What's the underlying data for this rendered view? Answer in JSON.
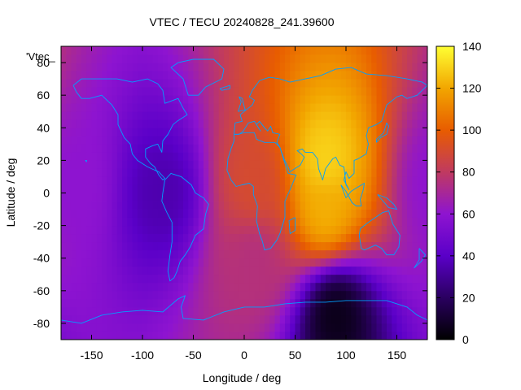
{
  "chart_data": {
    "type": "heatmap",
    "title": "VTEC / TECU 20240828_241.39600",
    "series_key_label": "'Vtec_",
    "xlabel": "Longitude / deg",
    "ylabel": "Latitude / deg",
    "xlim": [
      -180,
      180
    ],
    "ylim": [
      -90,
      90
    ],
    "x_ticks": [
      -150,
      -100,
      -50,
      0,
      50,
      100,
      150
    ],
    "y_ticks": [
      -80,
      -60,
      -40,
      -20,
      0,
      20,
      40,
      60,
      80
    ],
    "colorbar": {
      "min": 0,
      "max": 140,
      "ticks": [
        0,
        20,
        40,
        60,
        80,
        100,
        120,
        140
      ],
      "palette": [
        "#000000",
        "#2a0060",
        "#5a00c8",
        "#8e14d0",
        "#c03a60",
        "#e85c00",
        "#f2a600",
        "#ffff33"
      ]
    },
    "grid_resolution_deg": 5,
    "features": [
      {
        "region": "Indian Ocean / southern Asia crest",
        "lon": 80,
        "lat": 20,
        "vtec": 130
      },
      {
        "region": "Southern Indian Ocean crest",
        "lon": 80,
        "lat": -10,
        "vtec": 122
      },
      {
        "region": "Africa / Atlantic equatorial band",
        "lon": 10,
        "lat": 5,
        "vtec": 90
      },
      {
        "region": "South Atlantic",
        "lon": 10,
        "lat": -40,
        "vtec": 75
      },
      {
        "region": "Central Pacific",
        "lon": -170,
        "lat": 5,
        "vtec": 60
      },
      {
        "region": "Americas",
        "lon": -80,
        "lat": 0,
        "vtec": 35
      },
      {
        "region": "Southern high latitudes near 90E",
        "lon": 90,
        "lat": -75,
        "vtec": 5
      }
    ]
  }
}
